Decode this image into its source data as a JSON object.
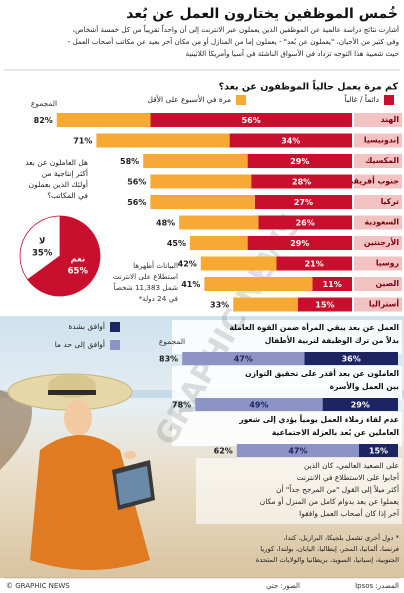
{
  "page": {
    "title": "خُمس الموظفين يختارون العمل عن بُعد",
    "intro": [
      "أشارت نتائج دراسة عالمية عن الموظفين الذين يعملون عبر الانترنت إلى أن واحداً تقريباً من كل خمسة أشخاص،",
      "وفي كثير من الأحيان، \"يعملون عن بُعد\" - يعملون إما من المنازل أو من مكان آخر بعيد عن مكاتب أصحاب العمل -",
      "حيث شعبية هذا التوجه تزداد في الأسواق الناشئة في آسيا وأمريكا اللاتينية"
    ],
    "survey_note": [
      "البيانات أظهرها",
      "استطلاع على الانترنت",
      "شمل 11,383 شخصاً",
      "في 24 دولة*"
    ],
    "finding": [
      "على الصعيد العالمي، كان الذين",
      "أجابوا على الاستطلاع في الانترنت",
      "أكثر ميلاً إلى القول \"من المرجح جداً\" أن",
      "يعملوا عن بعد بدوام كامل من المنزل أو مكان",
      "آخر إذا كان أصحاب العمل وافقوا"
    ],
    "footnote": [
      "* دول أخرى تشمل بلجيكا، البرازيل، كندا،",
      "فرنسا، ألمانيا، المجر، إيطاليا، اليابان، بولندا، كوريا",
      "الجنوبية، إسبانيا، السويد، بريطانيا والولايات المتحدة"
    ],
    "credit": "© GRAPHIC NEWS",
    "photo": "الصور: جتي",
    "source": "المصدر: Ipsos",
    "watermark": "GRAPHIC NEWS"
  },
  "chart_data": [
    {
      "type": "bar",
      "title": "كم مرة يعمل حالياً الموظفون عن بعد؟",
      "categories": [
        "الهند",
        "إندونيسيا",
        "المكسيك",
        "جنوب أفريقيا",
        "تركيا",
        "السعودية",
        "الأرجنتين",
        "روسيا",
        "الصين",
        "أستراليا"
      ],
      "series": [
        {
          "name": "دائماً / غالباً",
          "color": "#c8102e",
          "values": [
            56,
            34,
            29,
            28,
            27,
            26,
            29,
            21,
            11,
            15
          ],
          "value_labels": [
            "56%",
            "34%",
            "29%",
            "28%",
            "27%",
            "26%",
            "29%",
            "21%",
            "11%",
            "15%"
          ]
        },
        {
          "name": "مرة في الأسبوع على الأقل",
          "color": "#f7a934",
          "values": [
            26,
            37,
            29,
            28,
            29,
            22,
            16,
            21,
            30,
            18
          ]
        }
      ],
      "total_title": "المجموع",
      "totals": [
        82,
        71,
        58,
        56,
        56,
        48,
        45,
        42,
        41,
        33
      ],
      "total_labels": [
        "82%",
        "71%",
        "58%",
        "56%",
        "56%",
        "48%",
        "45%",
        "42%",
        "41%",
        "33%"
      ]
    },
    {
      "type": "pie",
      "title": [
        "هل العاملون عن بعد",
        "أكثر إنتاجية من",
        "أولئك الذين يعملون",
        "في المكاتب؟"
      ],
      "categories": [
        "نعم",
        "لا"
      ],
      "values": [
        65,
        35
      ],
      "value_labels": [
        "65%",
        "35%"
      ],
      "colors": [
        "#c8102e",
        "#ffffff"
      ]
    },
    {
      "type": "bar",
      "categories": [
        [
          "العمل عن بعد يبقي المرأة ضمن القوة العاملة",
          "بدلاً من ترك الوظيفة لتربية الأطفال"
        ],
        [
          "العاملون عن بعد أقدر على تحقيق التوازن",
          "بين العمل والأسرة"
        ],
        [
          "عدم لقاء زملاء العمل يومياً يؤدي إلى شعور",
          "العاملين عن بُعد بالعزلة الاجتماعية"
        ]
      ],
      "series": [
        {
          "name": "أوافق بشدة",
          "color": "#1c2561",
          "values": [
            36,
            29,
            15
          ],
          "value_labels": [
            "36%",
            "29%",
            "15%"
          ]
        },
        {
          "name": "أوافق إلى حد ما",
          "color": "#8c94c6",
          "values": [
            47,
            49,
            47
          ],
          "value_labels": [
            "47%",
            "49%",
            "47%"
          ]
        }
      ],
      "total_title": "المجموع",
      "totals": [
        83,
        78,
        62
      ],
      "total_labels": [
        "83%",
        "78%",
        "62%"
      ]
    }
  ]
}
